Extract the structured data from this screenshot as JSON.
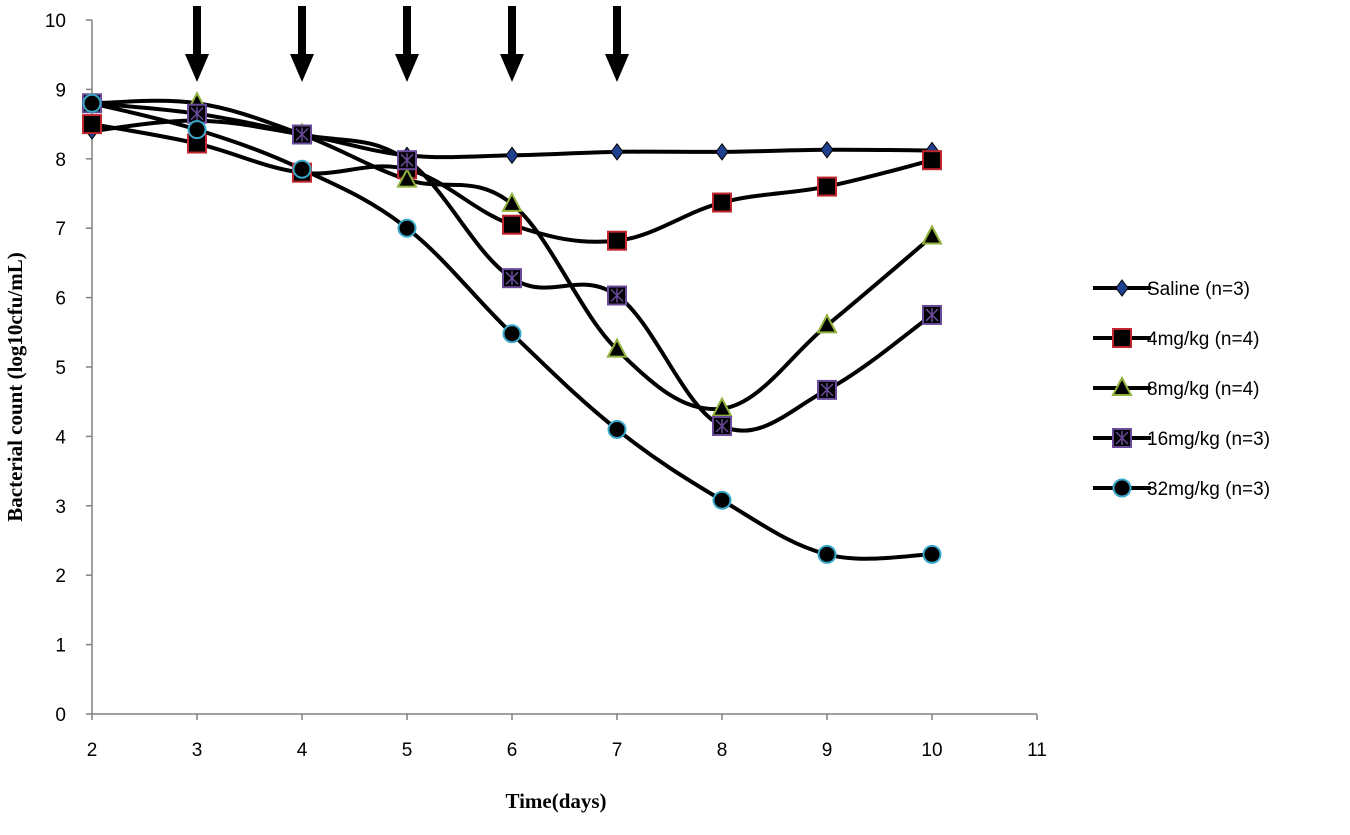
{
  "chart_data": {
    "type": "line",
    "title": "",
    "xlabel": "Time(days)",
    "ylabel": "Bacterial count (log10cfu/mL)",
    "xlim": [
      2,
      11
    ],
    "ylim": [
      0,
      10
    ],
    "x_ticks": [
      "2",
      "3",
      "4",
      "5",
      "6",
      "7",
      "8",
      "9",
      "10",
      "11"
    ],
    "y_ticks": [
      "0",
      "1",
      "2",
      "3",
      "4",
      "5",
      "6",
      "7",
      "8",
      "9",
      "10"
    ],
    "grid": false,
    "legend_position": "right",
    "dosing_arrows_at_days": [
      3,
      4,
      5,
      6,
      7
    ],
    "series": [
      {
        "name": "Saline (n=3)",
        "marker": "diamond",
        "marker_color": "#1f3f8f",
        "x": [
          2,
          3,
          4,
          5,
          6,
          7,
          8,
          9,
          10
        ],
        "values": [
          8.4,
          8.55,
          8.35,
          8.05,
          8.05,
          8.1,
          8.1,
          8.13,
          8.12
        ]
      },
      {
        "name": "4mg/kg (n=4)",
        "marker": "square",
        "marker_color": "#c0262d",
        "x": [
          2,
          3,
          4,
          5,
          6,
          7,
          8,
          9,
          10
        ],
        "values": [
          8.5,
          8.22,
          7.8,
          7.85,
          7.05,
          6.82,
          7.37,
          7.6,
          7.98
        ]
      },
      {
        "name": "8mg/kg (n=4)",
        "marker": "triangle",
        "marker_color": "#8fb03a",
        "x": [
          2,
          3,
          4,
          5,
          6,
          7,
          8,
          9,
          10
        ],
        "values": [
          8.8,
          8.8,
          8.35,
          7.7,
          7.35,
          5.25,
          4.4,
          5.6,
          6.88
        ]
      },
      {
        "name": "16mg/kg (n=3)",
        "marker": "star-square",
        "marker_color": "#6a4a9a",
        "x": [
          2,
          3,
          4,
          5,
          6,
          7,
          8,
          9,
          10
        ],
        "values": [
          8.8,
          8.65,
          8.35,
          7.98,
          6.28,
          6.03,
          4.15,
          4.67,
          5.75
        ]
      },
      {
        "name": "32mg/kg (n=3)",
        "marker": "circle",
        "marker_color": "#3aa8c8",
        "x": [
          2,
          3,
          4,
          5,
          6,
          7,
          8,
          9,
          10
        ],
        "values": [
          8.8,
          8.42,
          7.85,
          7.0,
          5.48,
          4.1,
          3.08,
          2.3,
          2.3
        ]
      }
    ]
  }
}
